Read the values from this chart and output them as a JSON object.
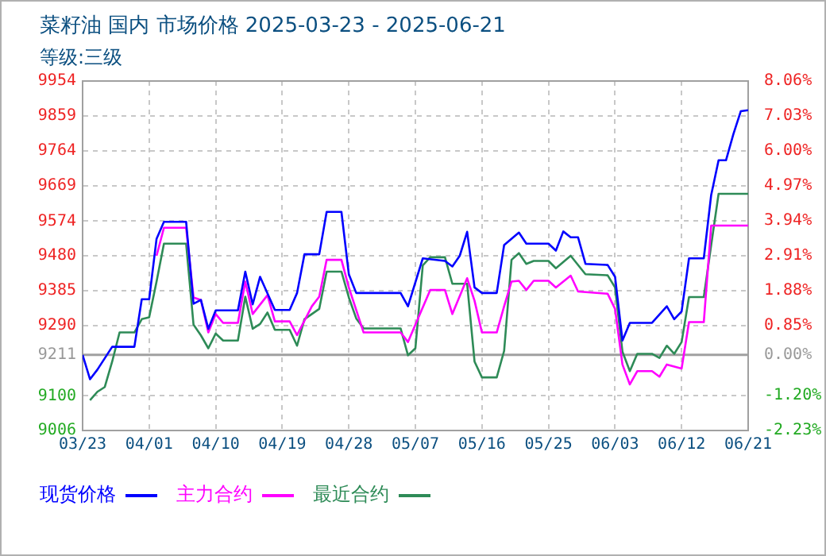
{
  "chart_data": {
    "type": "line",
    "title": "菜籽油 国内 市场价格 2025-03-23 - 2025-06-21",
    "subtitle": "等级:三级",
    "xlim": [
      "2025-03-23",
      "2025-06-21"
    ],
    "xticks": [
      {
        "value": "2025-03-23",
        "label": "03/23"
      },
      {
        "value": "2025-04-01",
        "label": "04/01"
      },
      {
        "value": "2025-04-10",
        "label": "04/10"
      },
      {
        "value": "2025-04-19",
        "label": "04/19"
      },
      {
        "value": "2025-04-28",
        "label": "04/28"
      },
      {
        "value": "2025-05-07",
        "label": "05/07"
      },
      {
        "value": "2025-05-16",
        "label": "05/16"
      },
      {
        "value": "2025-05-25",
        "label": "05/25"
      },
      {
        "value": "2025-06-03",
        "label": "06/03"
      },
      {
        "value": "2025-06-12",
        "label": "06/12"
      },
      {
        "value": "2025-06-21",
        "label": "06/21"
      }
    ],
    "ylim": [
      9006,
      9954
    ],
    "yticks": [
      9954,
      9859,
      9764,
      9669,
      9574,
      9480,
      9385,
      9290,
      9211,
      9100,
      9006
    ],
    "y2lim": [
      -2.23,
      8.06
    ],
    "y2ticks": [
      {
        "value": 8.06,
        "label": "8.06%"
      },
      {
        "value": 7.03,
        "label": "7.03%"
      },
      {
        "value": 6.0,
        "label": "6.00%"
      },
      {
        "value": 4.97,
        "label": "4.97%"
      },
      {
        "value": 3.94,
        "label": "3.94%"
      },
      {
        "value": 2.91,
        "label": "2.91%"
      },
      {
        "value": 1.88,
        "label": "1.88%"
      },
      {
        "value": 0.85,
        "label": "0.85%"
      },
      {
        "value": 0,
        "label": "0.00%"
      },
      {
        "value": -1.2,
        "label": "-1.20%"
      },
      {
        "value": -2.23,
        "label": "-2.23%"
      }
    ],
    "ref_lines": [
      {
        "axis": "y",
        "value": 9211,
        "color": "#a0a0a0"
      }
    ],
    "grid": true,
    "legend": "bottom",
    "series": [
      {
        "name": "现货价格",
        "color": "#0000ff",
        "x": [
          "2025-03-23",
          "2025-03-24",
          "2025-03-25",
          "2025-03-27",
          "2025-03-30",
          "2025-03-31",
          "2025-04-01",
          "2025-04-02",
          "2025-04-03",
          "2025-04-06",
          "2025-04-07",
          "2025-04-08",
          "2025-04-09",
          "2025-04-10",
          "2025-04-13",
          "2025-04-14",
          "2025-04-15",
          "2025-04-16",
          "2025-04-18",
          "2025-04-20",
          "2025-04-21",
          "2025-04-22",
          "2025-04-24",
          "2025-04-25",
          "2025-04-27",
          "2025-04-28",
          "2025-04-29",
          "2025-05-05",
          "2025-05-06",
          "2025-05-08",
          "2025-05-11",
          "2025-05-12",
          "2025-05-13",
          "2025-05-14",
          "2025-05-15",
          "2025-05-16",
          "2025-05-18",
          "2025-05-19",
          "2025-05-21",
          "2025-05-22",
          "2025-05-25",
          "2025-05-26",
          "2025-05-27",
          "2025-05-28",
          "2025-05-29",
          "2025-05-30",
          "2025-06-02",
          "2025-06-03",
          "2025-06-04",
          "2025-06-05",
          "2025-06-08",
          "2025-06-10",
          "2025-06-11",
          "2025-06-12",
          "2025-06-13",
          "2025-06-15",
          "2025-06-16",
          "2025-06-17",
          "2025-06-18",
          "2025-06-19",
          "2025-06-20",
          "2025-06-21"
        ],
        "values": [
          9211,
          9145,
          9171,
          9233,
          9233,
          9362,
          9362,
          9526,
          9572,
          9572,
          9350,
          9360,
          9282,
          9332,
          9332,
          9437,
          9348,
          9423,
          9333,
          9333,
          9379,
          9484,
          9484,
          9599,
          9599,
          9430,
          9379,
          9379,
          9343,
          9473,
          9466,
          9451,
          9480,
          9545,
          9394,
          9379,
          9379,
          9509,
          9543,
          9513,
          9513,
          9494,
          9546,
          9530,
          9530,
          9458,
          9455,
          9423,
          9250,
          9298,
          9298,
          9343,
          9308,
          9329,
          9473,
          9473,
          9645,
          9739,
          9739,
          9810,
          9872,
          9875
        ]
      },
      {
        "name": "主力合约",
        "color": "#ff00ff",
        "x": [
          "2025-04-02",
          "2025-04-03",
          "2025-04-06",
          "2025-04-07",
          "2025-04-08",
          "2025-04-09",
          "2025-04-10",
          "2025-04-11",
          "2025-04-13",
          "2025-04-14",
          "2025-04-15",
          "2025-04-17",
          "2025-04-18",
          "2025-04-20",
          "2025-04-21",
          "2025-04-23",
          "2025-04-24",
          "2025-04-25",
          "2025-04-27",
          "2025-04-28",
          "2025-04-30",
          "2025-05-05",
          "2025-05-06",
          "2025-05-07",
          "2025-05-09",
          "2025-05-11",
          "2025-05-12",
          "2025-05-14",
          "2025-05-15",
          "2025-05-16",
          "2025-05-18",
          "2025-05-19",
          "2025-05-20",
          "2025-05-21",
          "2025-05-22",
          "2025-05-23",
          "2025-05-25",
          "2025-05-26",
          "2025-05-28",
          "2025-05-29",
          "2025-06-02",
          "2025-06-03",
          "2025-06-04",
          "2025-06-05",
          "2025-06-06",
          "2025-06-08",
          "2025-06-09",
          "2025-06-10",
          "2025-06-12",
          "2025-06-13",
          "2025-06-15",
          "2025-06-16",
          "2025-06-21"
        ],
        "values": [
          9480,
          9556,
          9556,
          9367,
          9360,
          9272,
          9322,
          9298,
          9298,
          9410,
          9322,
          9373,
          9302,
          9302,
          9265,
          9343,
          9369,
          9469,
          9469,
          9394,
          9272,
          9272,
          9246,
          9293,
          9387,
          9387,
          9322,
          9419,
          9358,
          9272,
          9272,
          9343,
          9410,
          9412,
          9387,
          9412,
          9412,
          9394,
          9426,
          9383,
          9377,
          9336,
          9185,
          9131,
          9167,
          9167,
          9152,
          9185,
          9174,
          9300,
          9300,
          9562,
          9562
        ]
      },
      {
        "name": "最近合约",
        "color": "#2e8b57",
        "x": [
          "2025-03-24",
          "2025-03-25",
          "2025-03-26",
          "2025-03-27",
          "2025-03-28",
          "2025-03-30",
          "2025-03-31",
          "2025-04-01",
          "2025-04-02",
          "2025-04-03",
          "2025-04-06",
          "2025-04-07",
          "2025-04-08",
          "2025-04-09",
          "2025-04-10",
          "2025-04-11",
          "2025-04-13",
          "2025-04-14",
          "2025-04-15",
          "2025-04-16",
          "2025-04-17",
          "2025-04-18",
          "2025-04-20",
          "2025-04-21",
          "2025-04-22",
          "2025-04-24",
          "2025-04-25",
          "2025-04-27",
          "2025-04-28",
          "2025-04-29",
          "2025-04-30",
          "2025-05-05",
          "2025-05-06",
          "2025-05-07",
          "2025-05-08",
          "2025-05-09",
          "2025-05-11",
          "2025-05-12",
          "2025-05-14",
          "2025-05-15",
          "2025-05-16",
          "2025-05-18",
          "2025-05-19",
          "2025-05-20",
          "2025-05-21",
          "2025-05-22",
          "2025-05-23",
          "2025-05-25",
          "2025-05-26",
          "2025-05-28",
          "2025-05-30",
          "2025-06-02",
          "2025-06-03",
          "2025-06-04",
          "2025-06-05",
          "2025-06-06",
          "2025-06-08",
          "2025-06-09",
          "2025-06-10",
          "2025-06-11",
          "2025-06-12",
          "2025-06-13",
          "2025-06-15",
          "2025-06-16",
          "2025-06-17",
          "2025-06-21"
        ],
        "values": [
          9088,
          9111,
          9124,
          9193,
          9272,
          9272,
          9308,
          9313,
          9410,
          9513,
          9513,
          9293,
          9264,
          9229,
          9269,
          9250,
          9250,
          9369,
          9282,
          9295,
          9326,
          9279,
          9279,
          9236,
          9308,
          9336,
          9437,
          9437,
          9367,
          9310,
          9283,
          9283,
          9210,
          9229,
          9454,
          9476,
          9476,
          9404,
          9404,
          9193,
          9150,
          9150,
          9222,
          9469,
          9487,
          9458,
          9466,
          9466,
          9446,
          9480,
          9430,
          9427,
          9394,
          9220,
          9167,
          9214,
          9214,
          9203,
          9236,
          9214,
          9246,
          9368,
          9368,
          9509,
          9648,
          9648
        ]
      }
    ]
  }
}
